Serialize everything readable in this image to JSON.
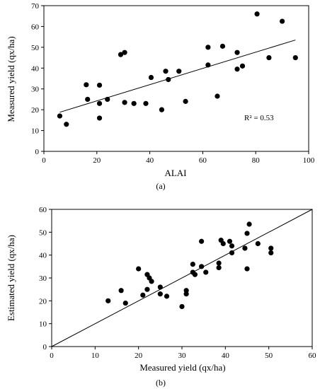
{
  "chart_data": [
    {
      "type": "scatter",
      "panel_label": "(a)",
      "xlabel": "ALAI",
      "ylabel": "Measured yield (qx/ha)",
      "xlim": [
        0,
        100
      ],
      "ylim": [
        0,
        70
      ],
      "xticks": [
        0,
        20,
        40,
        60,
        80,
        100
      ],
      "yticks": [
        0,
        10,
        20,
        30,
        40,
        50,
        60,
        70
      ],
      "annotation": "R² = 0.53",
      "grid": false,
      "trendline": {
        "x": [
          6,
          95
        ],
        "y": [
          18.8,
          53.5
        ]
      },
      "points": [
        [
          6,
          17
        ],
        [
          8.5,
          13
        ],
        [
          16,
          32
        ],
        [
          16.5,
          25
        ],
        [
          21,
          23
        ],
        [
          21,
          16
        ],
        [
          21,
          31.8
        ],
        [
          24,
          25
        ],
        [
          29,
          46.5
        ],
        [
          30.5,
          47.5
        ],
        [
          30.5,
          23.5
        ],
        [
          34,
          23
        ],
        [
          38.5,
          23
        ],
        [
          40.5,
          35.5
        ],
        [
          44.5,
          20
        ],
        [
          46,
          38.5
        ],
        [
          47,
          34.5
        ],
        [
          51,
          38.5
        ],
        [
          53.5,
          24
        ],
        [
          62,
          50
        ],
        [
          62,
          41.5
        ],
        [
          65.5,
          26.5
        ],
        [
          67.5,
          50.5
        ],
        [
          73,
          47.5
        ],
        [
          73,
          39.5
        ],
        [
          75,
          41
        ],
        [
          80.5,
          66
        ],
        [
          85,
          45
        ],
        [
          90,
          62.5
        ],
        [
          95,
          45
        ]
      ]
    },
    {
      "type": "scatter",
      "panel_label": "(b)",
      "xlabel": "Measured yield (qx/ha)",
      "ylabel": "Estimated yield (qx/ha)",
      "xlim": [
        0,
        60
      ],
      "ylim": [
        0,
        60
      ],
      "xticks": [
        0,
        10,
        20,
        30,
        40,
        50,
        60
      ],
      "yticks": [
        0,
        10,
        20,
        30,
        40,
        50,
        60
      ],
      "grid": false,
      "reference_line": {
        "x": [
          0,
          60
        ],
        "y": [
          0,
          60
        ]
      },
      "points": [
        [
          13,
          20
        ],
        [
          16,
          24.5
        ],
        [
          17,
          19
        ],
        [
          20,
          34
        ],
        [
          21,
          22.5
        ],
        [
          22,
          25
        ],
        [
          22,
          31.5
        ],
        [
          22.5,
          30
        ],
        [
          23,
          28.5
        ],
        [
          25,
          23
        ],
        [
          25,
          26
        ],
        [
          26.5,
          22
        ],
        [
          30,
          17.5
        ],
        [
          31,
          24.5
        ],
        [
          31,
          23
        ],
        [
          32.5,
          32.5
        ],
        [
          32.5,
          36
        ],
        [
          33,
          31.5
        ],
        [
          34.5,
          46
        ],
        [
          34.5,
          35
        ],
        [
          35.5,
          32.5
        ],
        [
          38.5,
          36.5
        ],
        [
          38.5,
          34.5
        ],
        [
          39,
          46.5
        ],
        [
          39.5,
          45
        ],
        [
          41,
          46
        ],
        [
          41.5,
          44
        ],
        [
          41.5,
          41
        ],
        [
          44.5,
          43
        ],
        [
          45,
          49.5
        ],
        [
          45,
          34
        ],
        [
          45.5,
          53.5
        ],
        [
          47.5,
          45
        ],
        [
          50.5,
          43
        ],
        [
          50.5,
          41
        ]
      ]
    }
  ]
}
